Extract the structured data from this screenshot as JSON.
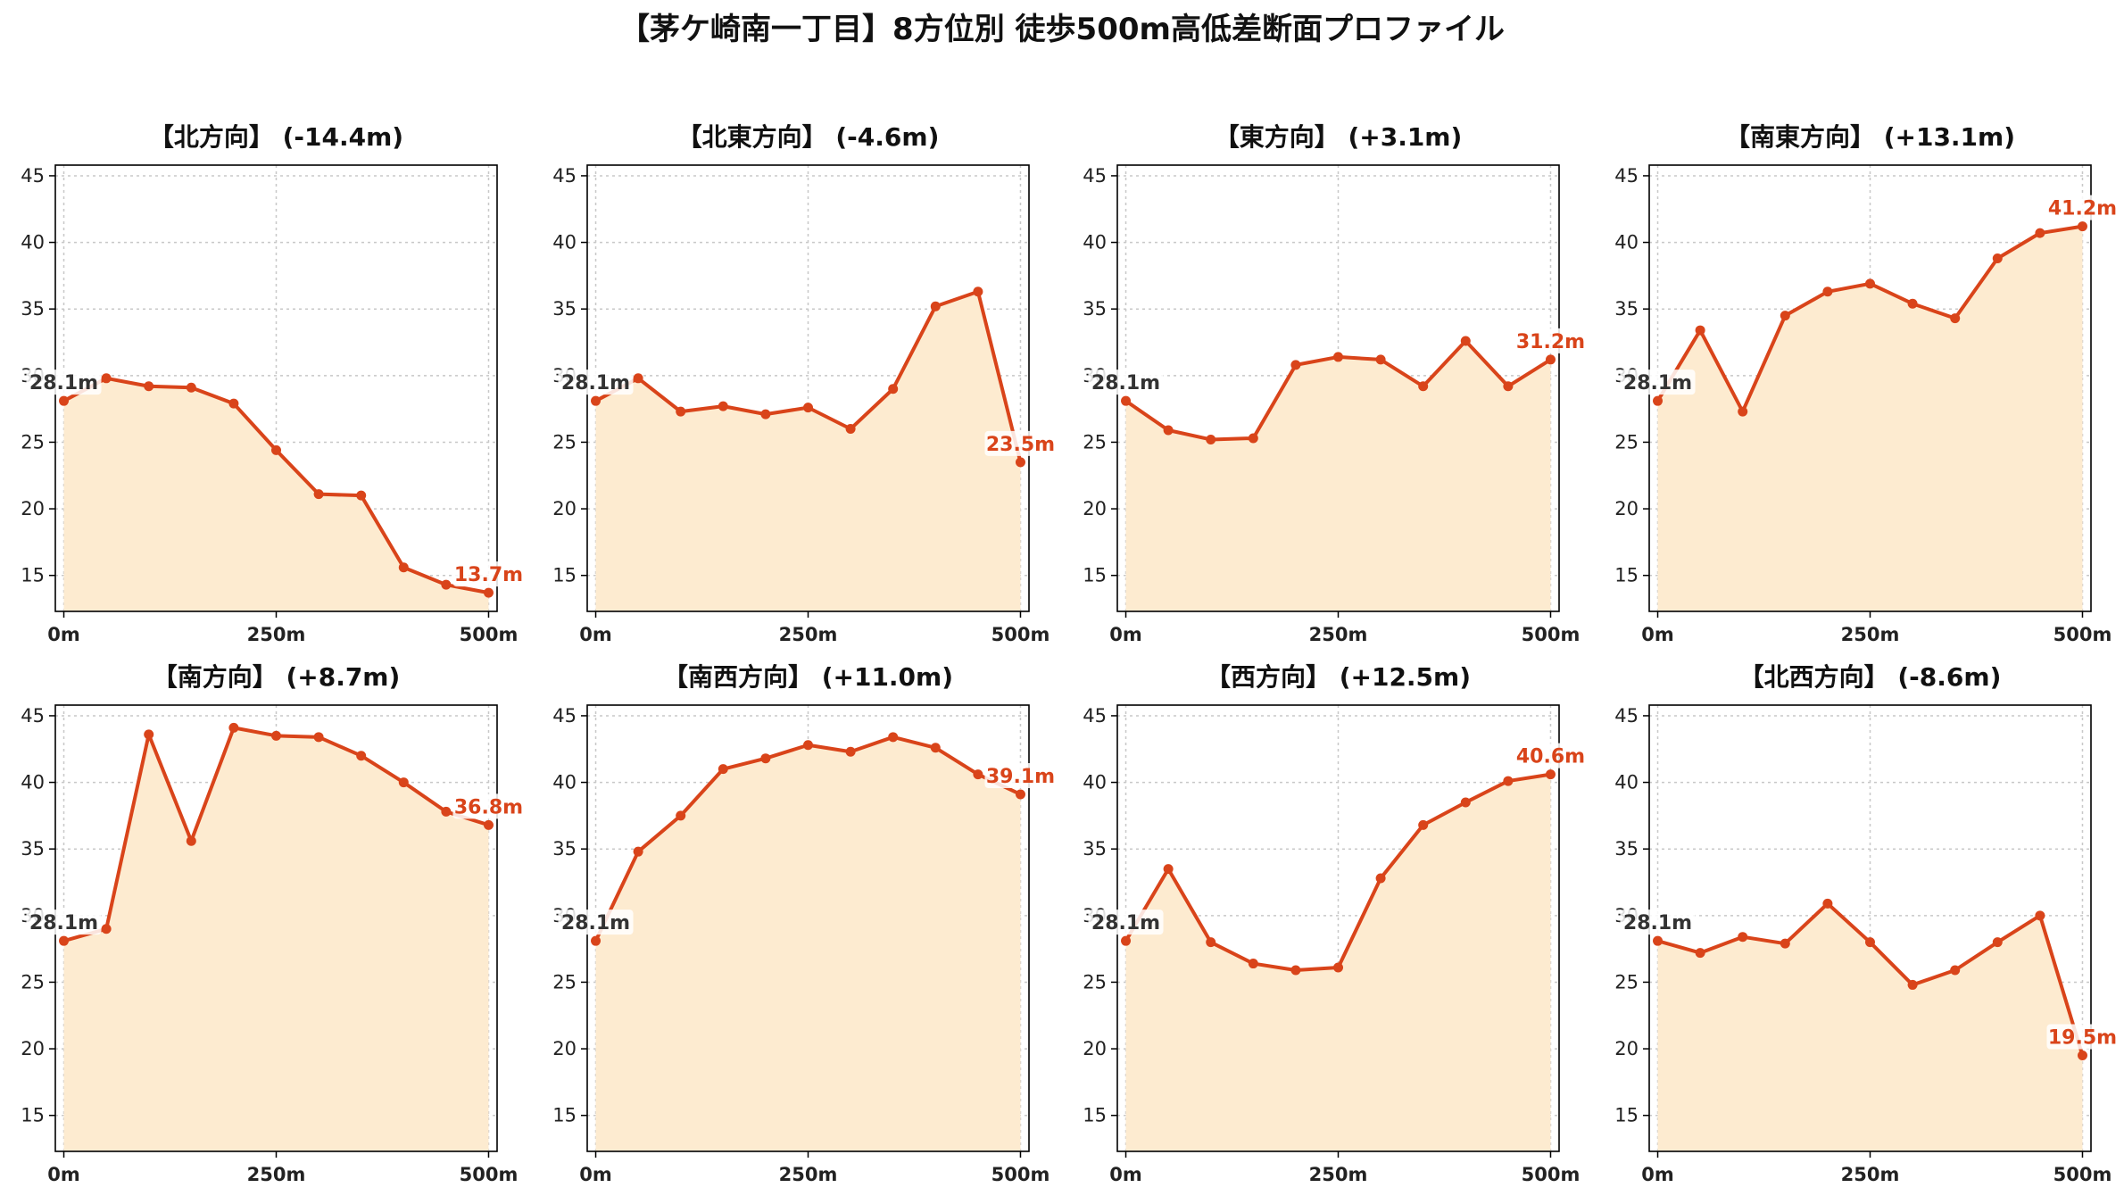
{
  "suptitle": "【茅ケ崎南一丁目】8方位別 徒歩500m高低差断面プロファイル",
  "colors": {
    "line": "#d9441a",
    "fill": "#fdebd0",
    "start_label": "#333333",
    "end_label": "#d9441a",
    "grid": "#c8c8c8"
  },
  "chart_data": [
    {
      "type": "area",
      "title": "【北方向】 (-14.4m)",
      "x": [
        0,
        50,
        100,
        150,
        200,
        250,
        300,
        350,
        400,
        450,
        500
      ],
      "values": [
        28.1,
        29.8,
        29.2,
        29.1,
        27.9,
        24.4,
        21.1,
        21.0,
        15.6,
        14.3,
        13.7
      ],
      "xticks": [
        0,
        250,
        500
      ],
      "xtick_labels": [
        "0m",
        "250m",
        "500m"
      ],
      "yticks": [
        15,
        20,
        25,
        30,
        35,
        40,
        45
      ],
      "ylim": [
        12.3,
        45.8
      ],
      "xlim": [
        -10,
        510
      ],
      "start_label": "28.1m",
      "end_label": "13.7m",
      "grid": true
    },
    {
      "type": "area",
      "title": "【北東方向】 (-4.6m)",
      "x": [
        0,
        50,
        100,
        150,
        200,
        250,
        300,
        350,
        400,
        450,
        500
      ],
      "values": [
        28.1,
        29.8,
        27.3,
        27.7,
        27.1,
        27.6,
        26.0,
        29.0,
        35.2,
        36.3,
        23.5
      ],
      "xticks": [
        0,
        250,
        500
      ],
      "xtick_labels": [
        "0m",
        "250m",
        "500m"
      ],
      "yticks": [
        15,
        20,
        25,
        30,
        35,
        40,
        45
      ],
      "ylim": [
        12.3,
        45.8
      ],
      "xlim": [
        -10,
        510
      ],
      "start_label": "28.1m",
      "end_label": "23.5m",
      "grid": true
    },
    {
      "type": "area",
      "title": "【東方向】 (+3.1m)",
      "x": [
        0,
        50,
        100,
        150,
        200,
        250,
        300,
        350,
        400,
        450,
        500
      ],
      "values": [
        28.1,
        25.9,
        25.2,
        25.3,
        30.8,
        31.4,
        31.2,
        29.2,
        32.6,
        29.2,
        31.2
      ],
      "xticks": [
        0,
        250,
        500
      ],
      "xtick_labels": [
        "0m",
        "250m",
        "500m"
      ],
      "yticks": [
        15,
        20,
        25,
        30,
        35,
        40,
        45
      ],
      "ylim": [
        12.3,
        45.8
      ],
      "xlim": [
        -10,
        510
      ],
      "start_label": "28.1m",
      "end_label": "31.2m",
      "grid": true
    },
    {
      "type": "area",
      "title": "【南東方向】 (+13.1m)",
      "x": [
        0,
        50,
        100,
        150,
        200,
        250,
        300,
        350,
        400,
        450,
        500
      ],
      "values": [
        28.1,
        33.4,
        27.3,
        34.5,
        36.3,
        36.9,
        35.4,
        34.3,
        38.8,
        40.7,
        41.2
      ],
      "xticks": [
        0,
        250,
        500
      ],
      "xtick_labels": [
        "0m",
        "250m",
        "500m"
      ],
      "yticks": [
        15,
        20,
        25,
        30,
        35,
        40,
        45
      ],
      "ylim": [
        12.3,
        45.8
      ],
      "xlim": [
        -10,
        510
      ],
      "start_label": "28.1m",
      "end_label": "41.2m",
      "grid": true
    },
    {
      "type": "area",
      "title": "【南方向】 (+8.7m)",
      "x": [
        0,
        50,
        100,
        150,
        200,
        250,
        300,
        350,
        400,
        450,
        500
      ],
      "values": [
        28.1,
        29.0,
        43.6,
        35.6,
        44.1,
        43.5,
        43.4,
        42.0,
        40.0,
        37.8,
        36.8
      ],
      "xticks": [
        0,
        250,
        500
      ],
      "xtick_labels": [
        "0m",
        "250m",
        "500m"
      ],
      "yticks": [
        15,
        20,
        25,
        30,
        35,
        40,
        45
      ],
      "ylim": [
        12.3,
        45.8
      ],
      "xlim": [
        -10,
        510
      ],
      "start_label": "28.1m",
      "end_label": "36.8m",
      "grid": true
    },
    {
      "type": "area",
      "title": "【南西方向】 (+11.0m)",
      "x": [
        0,
        50,
        100,
        150,
        200,
        250,
        300,
        350,
        400,
        450,
        500
      ],
      "values": [
        28.1,
        34.8,
        37.5,
        41.0,
        41.8,
        42.8,
        42.3,
        43.4,
        42.6,
        40.6,
        39.1
      ],
      "xticks": [
        0,
        250,
        500
      ],
      "xtick_labels": [
        "0m",
        "250m",
        "500m"
      ],
      "yticks": [
        15,
        20,
        25,
        30,
        35,
        40,
        45
      ],
      "ylim": [
        12.3,
        45.8
      ],
      "xlim": [
        -10,
        510
      ],
      "start_label": "28.1m",
      "end_label": "39.1m",
      "grid": true
    },
    {
      "type": "area",
      "title": "【西方向】 (+12.5m)",
      "x": [
        0,
        50,
        100,
        150,
        200,
        250,
        300,
        350,
        400,
        450,
        500
      ],
      "values": [
        28.1,
        33.5,
        28.0,
        26.4,
        25.9,
        26.1,
        32.8,
        36.8,
        38.5,
        40.1,
        40.6
      ],
      "xticks": [
        0,
        250,
        500
      ],
      "xtick_labels": [
        "0m",
        "250m",
        "500m"
      ],
      "yticks": [
        15,
        20,
        25,
        30,
        35,
        40,
        45
      ],
      "ylim": [
        12.3,
        45.8
      ],
      "xlim": [
        -10,
        510
      ],
      "start_label": "28.1m",
      "end_label": "40.6m",
      "grid": true
    },
    {
      "type": "area",
      "title": "【北西方向】 (-8.6m)",
      "x": [
        0,
        50,
        100,
        150,
        200,
        250,
        300,
        350,
        400,
        450,
        500
      ],
      "values": [
        28.1,
        27.2,
        28.4,
        27.9,
        30.9,
        28.0,
        24.8,
        25.9,
        28.0,
        30.0,
        19.5
      ],
      "xticks": [
        0,
        250,
        500
      ],
      "xtick_labels": [
        "0m",
        "250m",
        "500m"
      ],
      "yticks": [
        15,
        20,
        25,
        30,
        35,
        40,
        45
      ],
      "ylim": [
        12.3,
        45.8
      ],
      "xlim": [
        -10,
        510
      ],
      "start_label": "28.1m",
      "end_label": "19.5m",
      "grid": true
    }
  ]
}
